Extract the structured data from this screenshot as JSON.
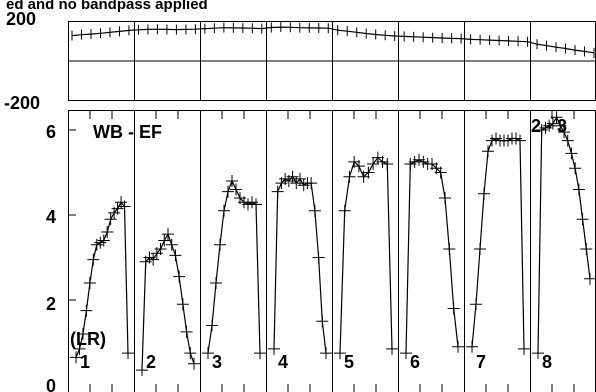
{
  "chart_data": [
    {
      "type": "line",
      "title": "ed and no bandpass applied",
      "ylim": [
        -200,
        200
      ],
      "yticks": [
        "200",
        "-200"
      ],
      "panels": [
        "1",
        "2",
        "3",
        "4",
        "5",
        "6",
        "7",
        "8"
      ],
      "series": [
        {
          "values": [
            130,
            135,
            138,
            142,
            147,
            152,
            157,
            160,
            162,
            163,
            162,
            161,
            162,
            163,
            166,
            168,
            171,
            170,
            169,
            168,
            166,
            172,
            174,
            173,
            171,
            170,
            169,
            168,
            158,
            153,
            147,
            141,
            136,
            132,
            128,
            126,
            124,
            122,
            120,
            118,
            116,
            115,
            111,
            109,
            107,
            105,
            103,
            101,
            99,
            86,
            79,
            71,
            64,
            56,
            49,
            42
          ]
        }
      ]
    },
    {
      "type": "line",
      "annotation": "WB - EF",
      "corner_label": "2 - 3",
      "ylim": [
        0,
        6.5
      ],
      "yticks": [
        "6",
        "4",
        "2",
        "0"
      ],
      "panel_labels": [
        "1",
        "2",
        "3",
        "4",
        "5",
        "6",
        "7",
        "8"
      ],
      "panel_label_prefix": "(LR)",
      "series": [
        {
          "panels": [
            [
              0.65,
              0.85,
              1.2,
              1.75,
              2.4,
              2.95,
              3.3,
              3.35,
              3.4,
              3.6,
              3.9,
              4.05,
              4.15,
              4.3,
              4.2,
              0.75
            ],
            [
              0.35,
              2.9,
              3.0,
              2.95,
              3.1,
              3.2,
              3.4,
              3.55,
              3.3,
              3.05,
              2.55,
              1.9,
              1.25,
              0.75,
              0.5
            ],
            [
              0.75,
              1.4,
              2.4,
              3.3,
              4.1,
              4.55,
              4.8,
              4.6,
              4.4,
              4.3,
              4.25,
              4.3,
              4.25,
              0.75
            ],
            [
              0.85,
              4.55,
              4.75,
              4.85,
              4.8,
              4.9,
              4.75,
              4.85,
              4.7,
              4.75,
              4.75,
              4.1,
              3.0,
              1.5,
              0.75
            ],
            [
              0.75,
              4.1,
              4.9,
              5.25,
              5.15,
              4.9,
              5.0,
              5.2,
              5.35,
              5.25,
              5.2,
              0.85
            ],
            [
              0.75,
              5.2,
              5.25,
              5.3,
              5.25,
              5.2,
              5.2,
              5.1,
              5.0,
              4.4,
              3.2,
              1.8,
              0.9
            ],
            [
              0.9,
              1.9,
              3.2,
              4.5,
              5.5,
              5.75,
              5.8,
              5.75,
              5.75,
              5.75,
              5.8,
              5.8,
              5.75,
              0.85
            ],
            [
              0.75,
              6.0,
              6.05,
              6.1,
              6.15,
              6.3,
              6.1,
              5.95,
              5.75,
              5.45,
              5.1,
              4.6,
              3.9,
              3.2,
              2.5
            ]
          ]
        }
      ]
    }
  ]
}
